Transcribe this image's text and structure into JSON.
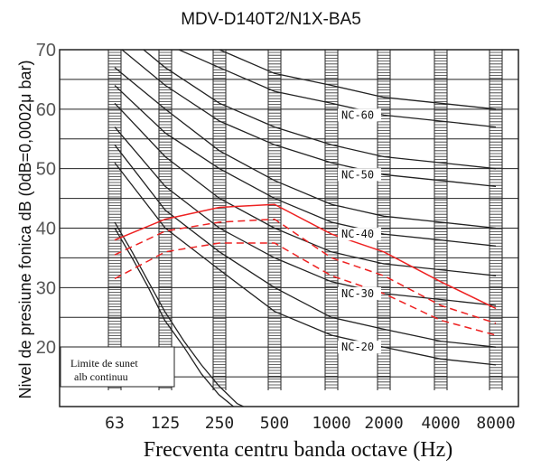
{
  "chart_data": {
    "type": "line",
    "title": "MDV-D140T2/N1X-BA5",
    "xlabel": "Frecventa centru banda octave (Hz)",
    "ylabel": "Nivel de presiune fonica dB (0dB=0,0002μ bar)",
    "categories": [
      "63",
      "125",
      "250",
      "500",
      "1000",
      "2000",
      "4000",
      "8000"
    ],
    "ylim": [
      10,
      70
    ],
    "yticks": [
      "20",
      "30",
      "40",
      "50",
      "60",
      "70"
    ],
    "yticks_values": [
      20,
      30,
      40,
      50,
      60,
      70
    ],
    "grid": true,
    "nc_curves": [
      {
        "name": "NC-20",
        "values": [
          51,
          40,
          33,
          26,
          22,
          20,
          18,
          17
        ]
      },
      {
        "name": "NC-30",
        "values": [
          57,
          47,
          40,
          35,
          31,
          29,
          28,
          27
        ]
      },
      {
        "name": "NC-40",
        "values": [
          64,
          56,
          50,
          45,
          41,
          39,
          38,
          37
        ]
      },
      {
        "name": "NC-50",
        "values": [
          71,
          64,
          58,
          54,
          51,
          49,
          48,
          47
        ]
      },
      {
        "name": "NC-60",
        "values": [
          77,
          71,
          67,
          63,
          61,
          59,
          58,
          57
        ]
      }
    ],
    "background_curves": [
      {
        "values": [
          74,
          67,
          61,
          57,
          54,
          52,
          51,
          50
        ]
      },
      {
        "values": [
          67,
          60,
          53,
          48,
          44,
          42,
          41,
          40
        ]
      },
      {
        "values": [
          61,
          52,
          45,
          40,
          36,
          34,
          33,
          32
        ]
      },
      {
        "values": [
          54,
          43,
          36,
          30,
          25,
          23,
          21,
          20
        ]
      },
      {
        "values": [
          80,
          74,
          70,
          66,
          64,
          62,
          61,
          60
        ]
      }
    ],
    "threshold_curves": [
      {
        "x": [
          63,
          80,
          100,
          125,
          160,
          200,
          250,
          315,
          400
        ],
        "values": [
          41,
          36,
          31,
          26,
          21,
          17,
          13.5,
          10.5,
          9
        ]
      },
      {
        "x": [
          63,
          80,
          100,
          125,
          160,
          200,
          250,
          315,
          400
        ],
        "values": [
          40,
          35,
          30,
          24.5,
          20,
          15.5,
          12,
          9.5,
          8
        ]
      }
    ],
    "series": [
      {
        "style": "solid",
        "color": "#ee2222",
        "values": [
          38,
          41.5,
          43.5,
          44,
          39,
          36,
          31,
          26.5
        ]
      },
      {
        "style": "dashed",
        "color": "#ee2222",
        "values": [
          35.5,
          39.5,
          41,
          41.5,
          35,
          32,
          27,
          24
        ]
      },
      {
        "style": "dashed",
        "color": "#ee2222",
        "values": [
          31.5,
          36,
          37.5,
          37.5,
          32,
          29,
          24.5,
          22
        ]
      }
    ],
    "annotation": [
      "Limite de sunet",
      "alb continuu"
    ]
  }
}
